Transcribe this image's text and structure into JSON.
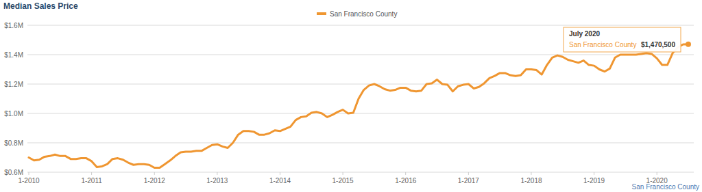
{
  "chart_data": {
    "type": "line",
    "title": "Median Sales Price",
    "categories": [
      "1-2010",
      null,
      null,
      null,
      null,
      null,
      null,
      null,
      null,
      null,
      null,
      null,
      "1-2011",
      null,
      null,
      null,
      null,
      null,
      null,
      null,
      null,
      null,
      null,
      null,
      "1-2012",
      null,
      null,
      null,
      null,
      null,
      null,
      null,
      null,
      null,
      null,
      null,
      "1-2013",
      null,
      null,
      null,
      null,
      null,
      null,
      null,
      null,
      null,
      null,
      null,
      "1-2014",
      null,
      null,
      null,
      null,
      null,
      null,
      null,
      null,
      null,
      null,
      null,
      "1-2015",
      null,
      null,
      null,
      null,
      null,
      null,
      null,
      null,
      null,
      null,
      null,
      "1-2016",
      null,
      null,
      null,
      null,
      null,
      null,
      null,
      null,
      null,
      null,
      null,
      "1-2017",
      null,
      null,
      null,
      null,
      null,
      null,
      null,
      null,
      null,
      null,
      null,
      "1-2018",
      null,
      null,
      null,
      null,
      null,
      null,
      null,
      null,
      null,
      null,
      null,
      "1-2019",
      null,
      null,
      null,
      null,
      null,
      null,
      null,
      null,
      null,
      null,
      null,
      "1-2020",
      null,
      null,
      null,
      null,
      null,
      null
    ],
    "series": [
      {
        "name": "San Francisco County",
        "color": "#ef9631",
        "values": [
          700000,
          680000,
          685000,
          705000,
          710000,
          720000,
          710000,
          710000,
          690000,
          690000,
          695000,
          695000,
          675000,
          635000,
          640000,
          655000,
          690000,
          695000,
          685000,
          665000,
          650000,
          655000,
          655000,
          650000,
          630000,
          630000,
          655000,
          680000,
          710000,
          735000,
          740000,
          740000,
          745000,
          745000,
          765000,
          785000,
          790000,
          775000,
          765000,
          800000,
          855000,
          880000,
          880000,
          875000,
          855000,
          855000,
          865000,
          885000,
          880000,
          895000,
          910000,
          955000,
          975000,
          980000,
          1005000,
          1010000,
          1000000,
          975000,
          990000,
          1010000,
          1025000,
          1000000,
          1005000,
          1100000,
          1160000,
          1190000,
          1200000,
          1185000,
          1165000,
          1155000,
          1160000,
          1175000,
          1175000,
          1155000,
          1150000,
          1155000,
          1200000,
          1205000,
          1230000,
          1200000,
          1195000,
          1150000,
          1185000,
          1195000,
          1200000,
          1170000,
          1180000,
          1205000,
          1240000,
          1255000,
          1275000,
          1275000,
          1260000,
          1255000,
          1260000,
          1300000,
          1300000,
          1295000,
          1265000,
          1330000,
          1380000,
          1395000,
          1385000,
          1365000,
          1355000,
          1345000,
          1360000,
          1330000,
          1325000,
          1300000,
          1285000,
          1305000,
          1380000,
          1400000,
          1400000,
          1400000,
          1400000,
          1405000,
          1410000,
          1405000,
          1375000,
          1330000,
          1330000,
          1410000,
          1450000,
          1470000,
          1470500
        ]
      }
    ],
    "ylim": [
      600000,
      1600000
    ],
    "yticks": [
      {
        "value": 600000,
        "label": "$0.6M"
      },
      {
        "value": 800000,
        "label": "$0.8M"
      },
      {
        "value": 1000000,
        "label": "$1.0M"
      },
      {
        "value": 1200000,
        "label": "$1.2M"
      },
      {
        "value": 1400000,
        "label": "$1.4M"
      },
      {
        "value": 1600000,
        "label": "$1.6M"
      }
    ],
    "grid": true,
    "legend": "top",
    "annotations": [
      {
        "title": "July 2020",
        "value": 1470500,
        "label": "$1,470,500"
      }
    ],
    "source": "San Francisco County"
  }
}
